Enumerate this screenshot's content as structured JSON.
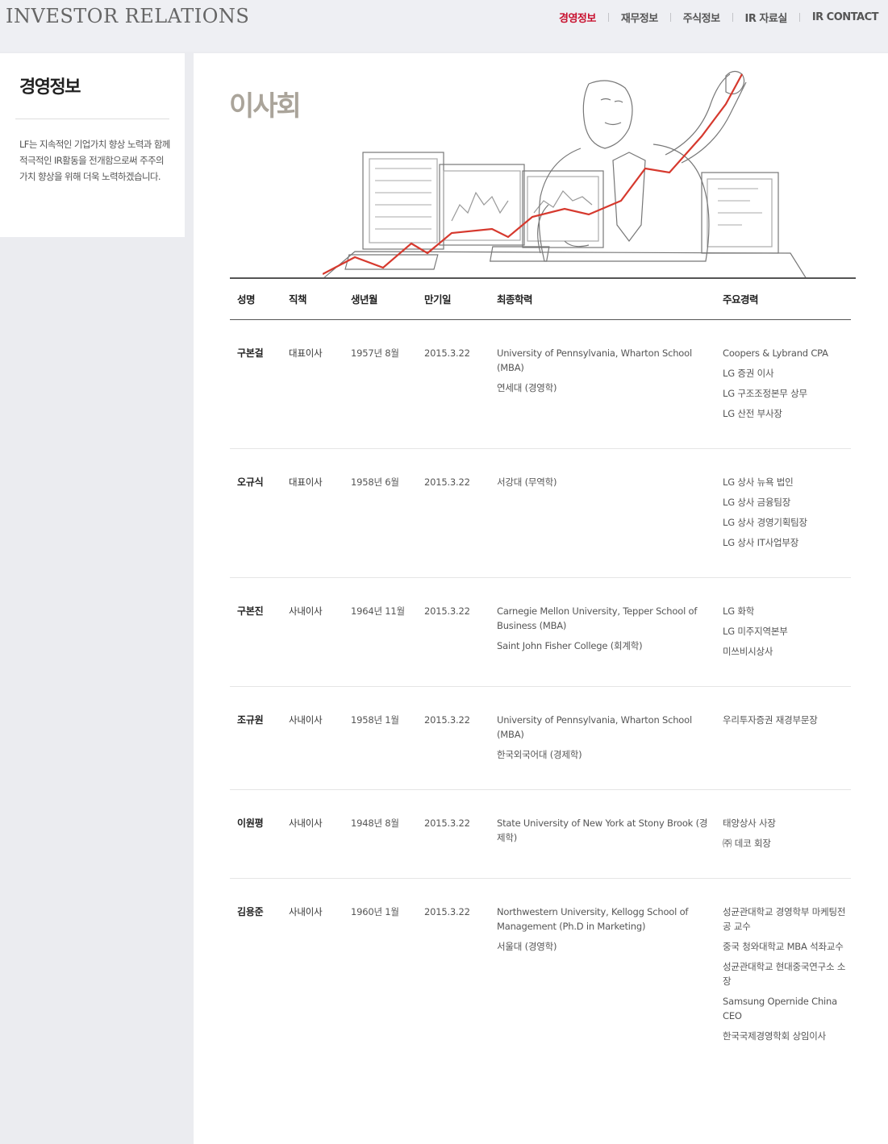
{
  "header": {
    "brand": "INVESTOR RELATIONS",
    "nav": [
      {
        "label": "경영정보",
        "active": true
      },
      {
        "label": "재무정보",
        "active": false
      },
      {
        "label": "주식정보",
        "active": false
      },
      {
        "label": "IR 자료실",
        "active": false
      },
      {
        "label": "IR CONTACT",
        "active": false
      }
    ],
    "accent_color": "#c8102e"
  },
  "sidebar": {
    "title": "경영정보",
    "description": "LF는 지속적인 기업가치 향상 노력과 함께 적극적인 IR활동을 전개함으로써 주주의 가치 향상을 위해 더욱 노력하겠습니다."
  },
  "main": {
    "title": "이사회",
    "table": {
      "columns": [
        "성명",
        "직책",
        "생년월",
        "만기일",
        "최종학력",
        "주요경력"
      ],
      "rows": [
        {
          "name": "구본걸",
          "role": "대표이사",
          "birth": "1957년 8월",
          "term": "2015.3.22",
          "education": [
            "University of Pennsylvania, Wharton School (MBA)",
            "연세대 (경영학)"
          ],
          "career": [
            "Coopers & Lybrand CPA",
            "LG 증권 이사",
            "LG 구조조정본무 상무",
            "LG 산전 부사장"
          ]
        },
        {
          "name": "오규식",
          "role": "대표이사",
          "birth": "1958년 6월",
          "term": "2015.3.22",
          "education": [
            "서강대 (무역학)"
          ],
          "career": [
            "LG 상사 뉴욕 법인",
            "LG 상사 금융팀장",
            "LG 상사 경영기획팀장",
            "LG 상사 IT사업부장"
          ]
        },
        {
          "name": "구본진",
          "role": "사내이사",
          "birth": "1964년 11월",
          "term": "2015.3.22",
          "education": [
            "Carnegie Mellon University, Tepper School of Business (MBA)",
            "Saint John Fisher College (회계학)"
          ],
          "career": [
            "LG 화학",
            "LG 미주지역본부",
            "미쓰비시상사"
          ]
        },
        {
          "name": "조규원",
          "role": "사내이사",
          "birth": "1958년 1월",
          "term": "2015.3.22",
          "education": [
            "University of Pennsylvania, Wharton School (MBA)",
            "한국외국어대 (경제학)"
          ],
          "career": [
            "우리투자증권 재경부문장"
          ]
        },
        {
          "name": "이원평",
          "role": "사내이사",
          "birth": "1948년 8월",
          "term": "2015.3.22",
          "education": [
            "State University of New York at Stony Brook (경제학)"
          ],
          "career": [
            "태양상사 사장",
            "㈜ 데코 회장"
          ]
        },
        {
          "name": "김용준",
          "role": "사내이사",
          "birth": "1960년 1월",
          "term": "2015.3.22",
          "education": [
            "Northwestern University, Kellogg School of Management (Ph.D in Marketing)",
            "서울대 (경영학)"
          ],
          "career": [
            "성균관대학교 경영학부 마케팅전공 교수",
            "중국 청와대학교 MBA 석좌교수",
            "성균관대학교 현대중국연구소 소장",
            "Samsung Opernide China CEO",
            "한국국제경영학회 상임이사"
          ]
        }
      ]
    }
  }
}
